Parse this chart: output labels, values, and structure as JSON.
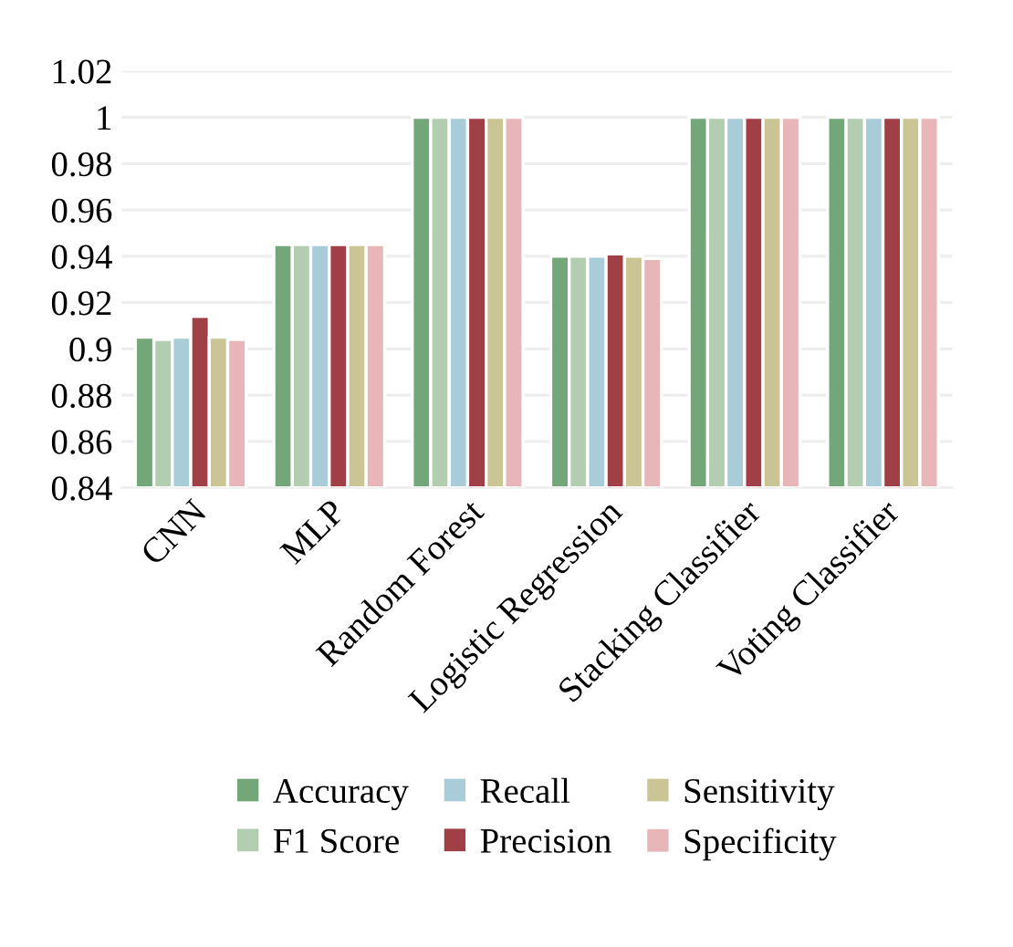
{
  "chart_data": {
    "type": "bar",
    "categories": [
      "CNN",
      "MLP",
      "Random Forest",
      "Logistic Regression",
      "Stacking Classifier",
      "Voting Classifier"
    ],
    "series": [
      {
        "name": "Accuracy",
        "color": "#73a678",
        "values": [
          0.905,
          0.945,
          1,
          0.94,
          1,
          1
        ]
      },
      {
        "name": "F1 Score",
        "color": "#b2cdb0",
        "values": [
          0.904,
          0.945,
          1,
          0.94,
          1,
          1
        ]
      },
      {
        "name": "Recall",
        "color": "#a8cdd8",
        "values": [
          0.905,
          0.945,
          1,
          0.94,
          1,
          1
        ]
      },
      {
        "name": "Precision",
        "color": "#a03f45",
        "values": [
          0.914,
          0.945,
          1,
          0.941,
          1,
          1
        ]
      },
      {
        "name": "Sensitivity",
        "color": "#cbc595",
        "values": [
          0.905,
          0.945,
          1,
          0.94,
          1,
          1
        ]
      },
      {
        "name": "Specificity",
        "color": "#e8b6b8",
        "values": [
          0.904,
          0.945,
          1,
          0.939,
          1,
          1
        ]
      }
    ],
    "ylim": [
      0.84,
      1.02
    ],
    "yticks": [
      0.84,
      0.86,
      0.88,
      0.9,
      0.92,
      0.94,
      0.96,
      0.98,
      1,
      1.02
    ],
    "grid": "y",
    "legend": "bottom"
  }
}
